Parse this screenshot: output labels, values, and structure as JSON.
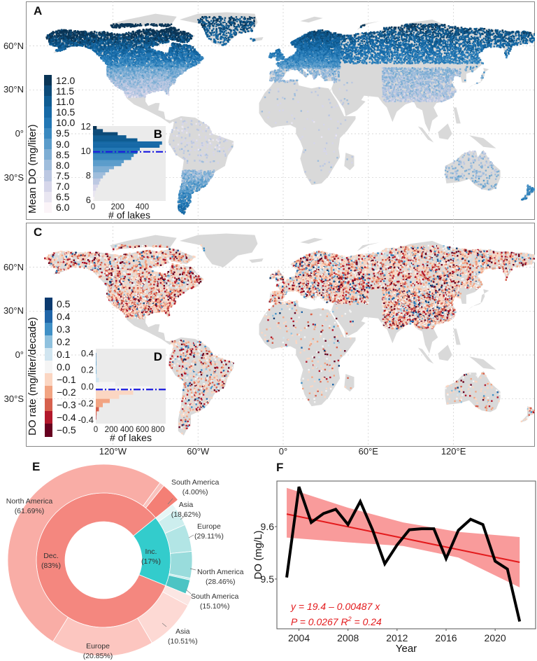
{
  "panels": {
    "a": "A",
    "b": "B",
    "c": "C",
    "d": "D",
    "e": "E",
    "f": "F"
  },
  "map_axes": {
    "lat_ticks": [
      {
        "value": 60,
        "label": "60°N"
      },
      {
        "value": 30,
        "label": "30°N"
      },
      {
        "value": 0,
        "label": "0°"
      },
      {
        "value": -30,
        "label": "30°S"
      }
    ],
    "lon_ticks": [
      {
        "value": -120,
        "label": "120°W"
      },
      {
        "value": -60,
        "label": "60°W"
      },
      {
        "value": 0,
        "label": "0°"
      },
      {
        "value": 60,
        "label": "60°E"
      },
      {
        "value": 120,
        "label": "120°E"
      }
    ],
    "land_color": "#d9d9d9",
    "grid": true
  },
  "chart_data": [
    {
      "id": "A",
      "type": "scatter",
      "description_kind": "map of lakes colored by mean DO",
      "colorbar": {
        "title": "Mean DO (mg/liter)",
        "ticks": [
          "12.0",
          "11.5",
          "11.0",
          "10.5",
          "10.0",
          "9.5",
          "9.0",
          "8.5",
          "8.0",
          "7.5",
          "7.0",
          "6.5",
          "6.0"
        ],
        "colors": [
          "#0a3556",
          "#0c4a78",
          "#0f5c92",
          "#1669a6",
          "#2277b4",
          "#3a89c0",
          "#5a9ccb",
          "#7eaed4",
          "#9fbddc",
          "#bcc8e2",
          "#d6d6ea",
          "#e9e6f1",
          "#fbf4f8"
        ]
      }
    },
    {
      "id": "B",
      "type": "bar",
      "orientation": "horizontal",
      "xlabel": "# of lakes",
      "x_ticks": [
        "0",
        "200",
        "400"
      ],
      "y_ticks": [
        "12",
        "10",
        "8",
        "6"
      ],
      "xlim": [
        0,
        590
      ],
      "ylim": [
        5.9,
        12
      ],
      "mean_line": 9.9,
      "bins": [
        6.0,
        6.25,
        6.5,
        6.75,
        7.0,
        7.25,
        7.5,
        7.75,
        8.0,
        8.25,
        8.5,
        8.75,
        9.0,
        9.25,
        9.5,
        9.75,
        10.0,
        10.25,
        10.5,
        10.75,
        11.0,
        11.25,
        11.5,
        11.75
      ],
      "counts": [
        10,
        15,
        20,
        25,
        40,
        50,
        60,
        80,
        100,
        130,
        170,
        230,
        250,
        310,
        330,
        360,
        380,
        540,
        560,
        360,
        270,
        200,
        80,
        30
      ]
    },
    {
      "id": "C",
      "type": "scatter",
      "description_kind": "map of lakes colored by DO rate",
      "colorbar": {
        "title": "DO rate (mg/liter/decade)",
        "ticks": [
          "0.5",
          "0.4",
          "0.3",
          "0.2",
          "0.1",
          "0.0",
          "−0.1",
          "−0.2",
          "−0.3",
          "−0.4",
          "−0.5"
        ],
        "colors": [
          "#0b3a6f",
          "#1f65a8",
          "#4090c6",
          "#8fc1de",
          "#d1e5f0",
          "#f5f5f5",
          "#fbd6c2",
          "#f2a482",
          "#d6604d",
          "#b2182b",
          "#67001f"
        ]
      }
    },
    {
      "id": "D",
      "type": "bar",
      "orientation": "horizontal",
      "xlabel": "# of lakes",
      "x_ticks": [
        "0",
        "200",
        "400",
        "600",
        "800"
      ],
      "y_ticks": [
        "0.4",
        "0.2",
        "0.0",
        "-0.2",
        "-0.4"
      ],
      "xlim": [
        0,
        900
      ],
      "ylim": [
        -0.45,
        0.45
      ],
      "mean_line": -0.04,
      "bins": [
        -0.4,
        -0.35,
        -0.3,
        -0.25,
        -0.2,
        -0.15,
        -0.1,
        -0.05,
        0.0,
        0.05,
        0.1,
        0.15,
        0.2,
        0.25,
        0.3,
        0.35
      ],
      "counts": [
        5,
        10,
        40,
        90,
        180,
        300,
        480,
        700,
        250,
        40,
        15,
        10,
        8,
        6,
        5,
        4
      ]
    },
    {
      "id": "E",
      "type": "pie",
      "inner": [
        {
          "key": "dec",
          "label": "Dec.",
          "pct": "(83%)",
          "value": 83,
          "color": "#f4877f"
        },
        {
          "key": "inc",
          "label": "Inc.",
          "pct": "(17%)",
          "value": 17,
          "color": "#33cccc"
        }
      ],
      "outer_inc": [
        {
          "label": "",
          "pct": "",
          "value": 6.71,
          "color": "#e6f6f6"
        },
        {
          "label": "Asia",
          "pct": "(18.62%)",
          "value": 18.62,
          "color": "#cdeeee"
        },
        {
          "label": "Europe",
          "pct": "(29.11%)",
          "value": 29.11,
          "color": "#b2e5e5"
        },
        {
          "label": "North America",
          "pct": "(28.46%)",
          "value": 28.46,
          "color": "#99dcdc"
        },
        {
          "label": "",
          "pct": "",
          "value": 2.0,
          "color": "#bfe9e9"
        },
        {
          "label": "South America",
          "pct": "(15.10%)",
          "value": 15.1,
          "color": "#4cc4c4"
        }
      ],
      "outer_dec": [
        {
          "label": "",
          "pct": "",
          "value": 2.0,
          "color": "#fbe6e3"
        },
        {
          "label": "Asia",
          "pct": "(10.51%)",
          "value": 10.51,
          "color": "#fdd9d4"
        },
        {
          "label": "Europe",
          "pct": "(20.85%)",
          "value": 20.85,
          "color": "#fcc6c0"
        },
        {
          "label": "North America",
          "pct": "(61.69%)",
          "value": 61.69,
          "color": "#f9ada6"
        },
        {
          "label": "",
          "pct": "",
          "value": 0.95,
          "color": "#f9c2bd"
        },
        {
          "label": "South America",
          "pct": "(4.00%)",
          "value": 4.0,
          "color": "#f47f75"
        }
      ]
    },
    {
      "id": "F",
      "type": "line",
      "xlabel": "Year",
      "ylabel": "DO (mg/L)",
      "x_ticks": [
        2004,
        2008,
        2012,
        2016,
        2020
      ],
      "y_ticks": [
        "9.5",
        "9.6"
      ],
      "xlim": [
        2002.2,
        2023.3
      ],
      "ylim": [
        9.405,
        9.687
      ],
      "x": [
        2003,
        2004,
        2005,
        2006,
        2007,
        2008,
        2009,
        2010,
        2011,
        2012,
        2013,
        2014,
        2015,
        2016,
        2017,
        2018,
        2019,
        2020,
        2021,
        2022
      ],
      "y": [
        9.503,
        9.676,
        9.608,
        9.625,
        9.633,
        9.604,
        9.648,
        9.594,
        9.529,
        9.565,
        9.594,
        9.596,
        9.596,
        9.539,
        9.593,
        9.614,
        9.604,
        9.534,
        9.519,
        9.419
      ],
      "fit": {
        "x": [
          2003,
          2022
        ],
        "y": [
          9.624,
          9.532
        ],
        "color": "#e31a1c"
      },
      "ci": {
        "x": [
          2003,
          2008,
          2012.5,
          2017,
          2022
        ],
        "upper": [
          9.674,
          9.636,
          9.608,
          9.59,
          9.58
        ],
        "lower": [
          9.579,
          9.57,
          9.563,
          9.541,
          9.484
        ],
        "color": "#f88a8a"
      },
      "equation": "y = 19.4 – 0.00487 x",
      "stats_p": "P = 0.0267",
      "stats_r2_prefix": "R",
      "stats_r2_value": " = 0.24",
      "line_color": "#000000"
    }
  ]
}
